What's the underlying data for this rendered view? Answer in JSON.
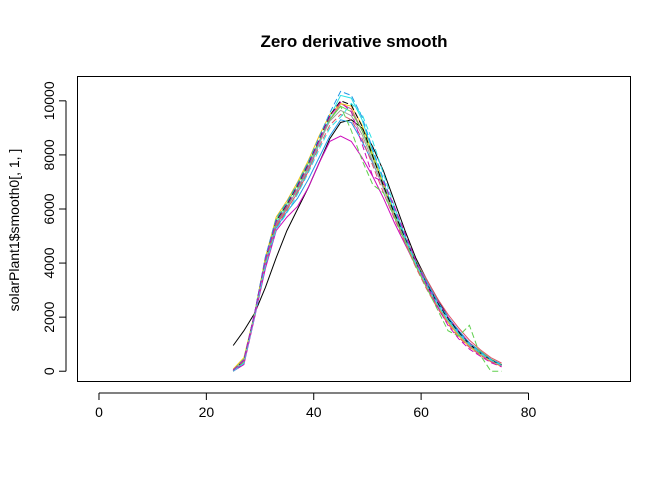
{
  "chart_data": {
    "type": "line",
    "title": "Zero derivative smooth",
    "xlabel": "",
    "ylabel": "solarPlant1$smooth0[, 1, ]",
    "xlim": [
      -4,
      99
    ],
    "ylim": [
      -380,
      10900
    ],
    "xticks": [
      0,
      20,
      40,
      60,
      80
    ],
    "yticks": [
      0,
      2000,
      4000,
      6000,
      8000,
      10000
    ],
    "grid": false,
    "legend": "none",
    "colors": [
      "#000000",
      "#DF536B",
      "#61D04F",
      "#2297E6",
      "#28E2E5",
      "#CD0BBC",
      "#F5C710",
      "#9E9E9E"
    ],
    "x": [
      25,
      27,
      29,
      31,
      33,
      35,
      37,
      39,
      41,
      43,
      45,
      47,
      49,
      51,
      53,
      55,
      57,
      59,
      61,
      63,
      65,
      67,
      69,
      71,
      73,
      75
    ],
    "series": [
      {
        "values": [
          950,
          1500,
          2150,
          3100,
          4200,
          5200,
          6000,
          6800,
          7700,
          8600,
          9200,
          9300,
          9000,
          8300,
          7400,
          6300,
          5200,
          4200,
          3400,
          2700,
          2000,
          1400,
          950,
          650,
          420,
          230
        ]
      },
      {
        "values": [
          0,
          350,
          2100,
          4000,
          5400,
          6000,
          6600,
          7400,
          8400,
          9300,
          9900,
          9700,
          8900,
          7900,
          6900,
          5900,
          5000,
          4100,
          3400,
          2700,
          2100,
          1600,
          1150,
          800,
          500,
          300
        ]
      },
      {
        "values": [
          50,
          450,
          2150,
          4200,
          5600,
          6200,
          6900,
          7700,
          8500,
          9300,
          9800,
          9600,
          8900,
          7900,
          6900,
          5900,
          4900,
          4100,
          3300,
          2600,
          2000,
          1500,
          1050,
          750,
          450,
          250
        ]
      },
      {
        "values": [
          0,
          300,
          2050,
          3900,
          5300,
          5900,
          6400,
          7100,
          7900,
          8700,
          9300,
          9200,
          8500,
          7700,
          6800,
          5800,
          4900,
          4000,
          3300,
          2600,
          2000,
          1450,
          1000,
          700,
          400,
          200
        ]
      },
      {
        "values": [
          30,
          400,
          2100,
          4100,
          5500,
          6100,
          6700,
          7500,
          8400,
          9400,
          10200,
          10100,
          9300,
          8100,
          7000,
          5900,
          4900,
          4000,
          3200,
          2500,
          1900,
          1400,
          1000,
          650,
          400,
          220
        ]
      },
      {
        "values": [
          0,
          250,
          2000,
          3800,
          5200,
          5700,
          6100,
          6800,
          7700,
          8500,
          8700,
          8500,
          7900,
          7200,
          6400,
          5500,
          4700,
          3900,
          3200,
          2600,
          2000,
          1500,
          1050,
          700,
          420,
          230
        ]
      },
      {
        "values": [
          80,
          500,
          2150,
          4200,
          5700,
          6300,
          7000,
          7800,
          8700,
          9500,
          9900,
          9800,
          9100,
          8000,
          6900,
          5800,
          4800,
          3900,
          3100,
          2400,
          1800,
          1300,
          900,
          600,
          350,
          180
        ]
      },
      {
        "values": [
          20,
          380,
          2100,
          4050,
          5450,
          6050,
          6750,
          7550,
          8450,
          9250,
          9650,
          9450,
          8750,
          7750,
          6750,
          5750,
          4850,
          3950,
          3150,
          2450,
          1850,
          1350,
          950,
          650,
          400,
          210
        ]
      },
      {
        "values": [
          0,
          420,
          2150,
          4150,
          5550,
          6150,
          6850,
          7650,
          8550,
          9450,
          10000,
          9850,
          9050,
          7950,
          6850,
          5850,
          4950,
          4050,
          3250,
          2550,
          1950,
          1450,
          1000,
          680,
          420,
          230
        ]
      },
      {
        "values": [
          60,
          360,
          2080,
          3950,
          5350,
          5950,
          6650,
          7450,
          8300,
          9100,
          9500,
          9300,
          8600,
          7600,
          6600,
          5650,
          4750,
          3850,
          3050,
          2350,
          1750,
          1250,
          880,
          600,
          360,
          190
        ]
      },
      {
        "values": [
          10,
          330,
          2120,
          4080,
          5480,
          6080,
          6780,
          7600,
          8500,
          9350,
          9800,
          8900,
          7800,
          6900,
          6600,
          5700,
          4800,
          3900,
          3100,
          2300,
          1500,
          1300,
          1700,
          600,
          0,
          0
        ]
      },
      {
        "values": [
          40,
          440,
          2170,
          4230,
          5650,
          6250,
          6950,
          7750,
          8650,
          9550,
          10350,
          10200,
          9400,
          8200,
          7100,
          6000,
          5000,
          4100,
          3300,
          2600,
          2000,
          1500,
          1050,
          720,
          440,
          250
        ]
      },
      {
        "values": [
          0,
          300,
          2050,
          3900,
          5250,
          5850,
          6550,
          7350,
          8200,
          9000,
          9400,
          9900,
          9500,
          8500,
          7300,
          6100,
          5000,
          4000,
          3200,
          2500,
          1900,
          1400,
          1000,
          680,
          410,
          220
        ]
      },
      {
        "values": [
          30,
          410,
          2130,
          4120,
          5520,
          6120,
          6820,
          7620,
          8520,
          9420,
          9950,
          9600,
          8400,
          7200,
          7000,
          6100,
          5100,
          4100,
          3200,
          2400,
          1700,
          1200,
          820,
          560,
          320,
          160
        ]
      }
    ]
  }
}
